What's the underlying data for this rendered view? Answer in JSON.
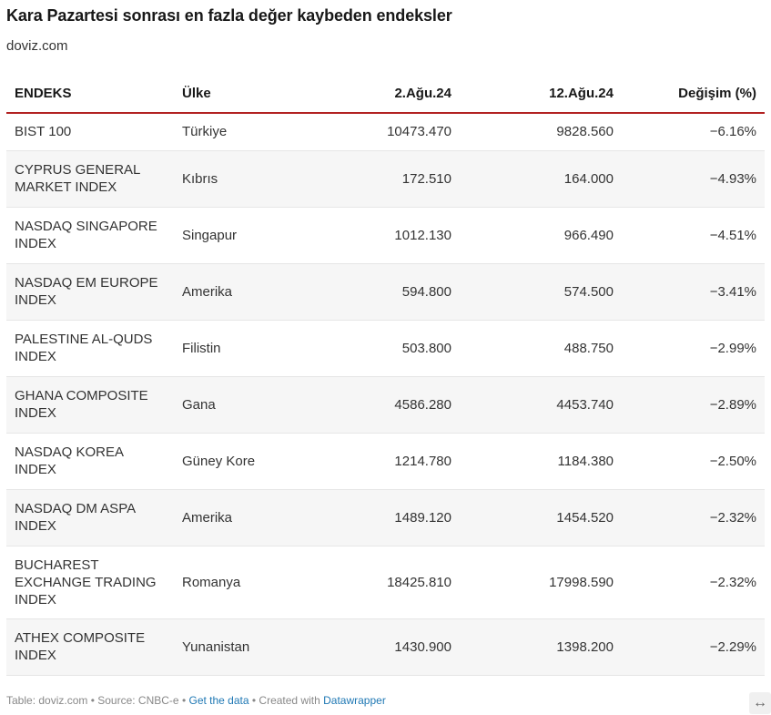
{
  "title": "Kara Pazartesi sonrası en fazla değer kaybeden endeksler",
  "subtitle": "doviz.com",
  "columns": [
    "ENDEKS",
    "Ülke",
    "2.Ağu.24",
    "12.Ağu.24",
    "Değişim (%)"
  ],
  "chart_data": {
    "type": "table",
    "title": "Kara Pazartesi sonrası en fazla değer kaybeden endeksler",
    "columns": [
      "ENDEKS",
      "Ülke",
      "2.Ağu.24",
      "12.Ağu.24",
      "Değişim (%)"
    ],
    "rows": [
      {
        "name": "BIST 100",
        "country": "Türkiye",
        "d1": "10473.470",
        "d2": "9828.560",
        "change": "−6.16%"
      },
      {
        "name": "CYPRUS GENERAL MARKET INDEX",
        "country": "Kıbrıs",
        "d1": "172.510",
        "d2": "164.000",
        "change": "−4.93%"
      },
      {
        "name": "NASDAQ SINGAPORE INDEX",
        "country": "Singapur",
        "d1": "1012.130",
        "d2": "966.490",
        "change": "−4.51%"
      },
      {
        "name": "NASDAQ EM EUROPE INDEX",
        "country": "Amerika",
        "d1": "594.800",
        "d2": "574.500",
        "change": "−3.41%"
      },
      {
        "name": "PALESTINE AL-QUDS INDEX",
        "country": "Filistin",
        "d1": "503.800",
        "d2": "488.750",
        "change": "−2.99%"
      },
      {
        "name": "GHANA COMPOSITE INDEX",
        "country": "Gana",
        "d1": "4586.280",
        "d2": "4453.740",
        "change": "−2.89%"
      },
      {
        "name": "NASDAQ KOREA INDEX",
        "country": "Güney Kore",
        "d1": "1214.780",
        "d2": "1184.380",
        "change": "−2.50%"
      },
      {
        "name": "NASDAQ DM ASPA INDEX",
        "country": "Amerika",
        "d1": "1489.120",
        "d2": "1454.520",
        "change": "−2.32%"
      },
      {
        "name": "BUCHAREST EXCHANGE TRADING INDEX",
        "country": "Romanya",
        "d1": "18425.810",
        "d2": "17998.590",
        "change": "−2.32%"
      },
      {
        "name": "ATHEX COMPOSITE INDEX",
        "country": "Yunanistan",
        "d1": "1430.900",
        "d2": "1398.200",
        "change": "−2.29%"
      }
    ]
  },
  "footer": {
    "source": "Table: doviz.com • Source: CNBC-e • ",
    "get_data": "Get the data",
    "created": " • Created with ",
    "datawrapper": "Datawrapper"
  },
  "expand_icon": "horizontal-arrows-icon",
  "expand_glyph": "↔",
  "colors": {
    "header_rule": "#b22222",
    "stripe": "#f6f6f6",
    "link": "#1f78b4"
  }
}
